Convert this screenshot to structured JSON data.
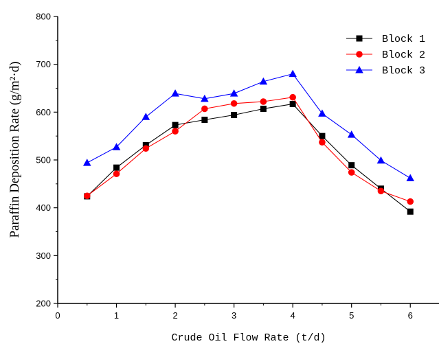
{
  "chart_data": {
    "type": "line",
    "xlabel": "Crude Oil Flow Rate (t/d)",
    "ylabel": "Paraffin Deposition Rate (g/m²·d)",
    "xlim": [
      0,
      6.5
    ],
    "ylim": [
      200,
      800
    ],
    "x_ticks": [
      0,
      1,
      2,
      3,
      4,
      5,
      6
    ],
    "y_ticks": [
      200,
      300,
      400,
      500,
      600,
      700,
      800
    ],
    "x_tick_labels": [
      "0",
      "1",
      "2",
      "3",
      "4",
      "5",
      "6"
    ],
    "y_tick_labels": [
      "200",
      "300",
      "400",
      "500",
      "600",
      "700",
      "800"
    ],
    "grid": false,
    "legend_position": "top-right",
    "x": [
      0.5,
      1.0,
      1.5,
      2.0,
      2.5,
      3.0,
      3.5,
      4.0,
      4.5,
      5.0,
      5.5,
      6.0
    ],
    "series": [
      {
        "name": "Block 1",
        "color": "#000000",
        "marker": "square",
        "values": [
          424,
          484,
          531,
          573,
          584,
          594,
          607,
          617,
          550,
          489,
          440,
          392
        ]
      },
      {
        "name": "Block 2",
        "color": "#ff0000",
        "marker": "circle",
        "values": [
          425,
          471,
          524,
          560,
          607,
          618,
          622,
          631,
          537,
          474,
          435,
          413
        ]
      },
      {
        "name": "Block 3",
        "color": "#0000ff",
        "marker": "triangle",
        "values": [
          494,
          527,
          590,
          639,
          628,
          639,
          664,
          680,
          597,
          553,
          499,
          462
        ]
      }
    ]
  }
}
